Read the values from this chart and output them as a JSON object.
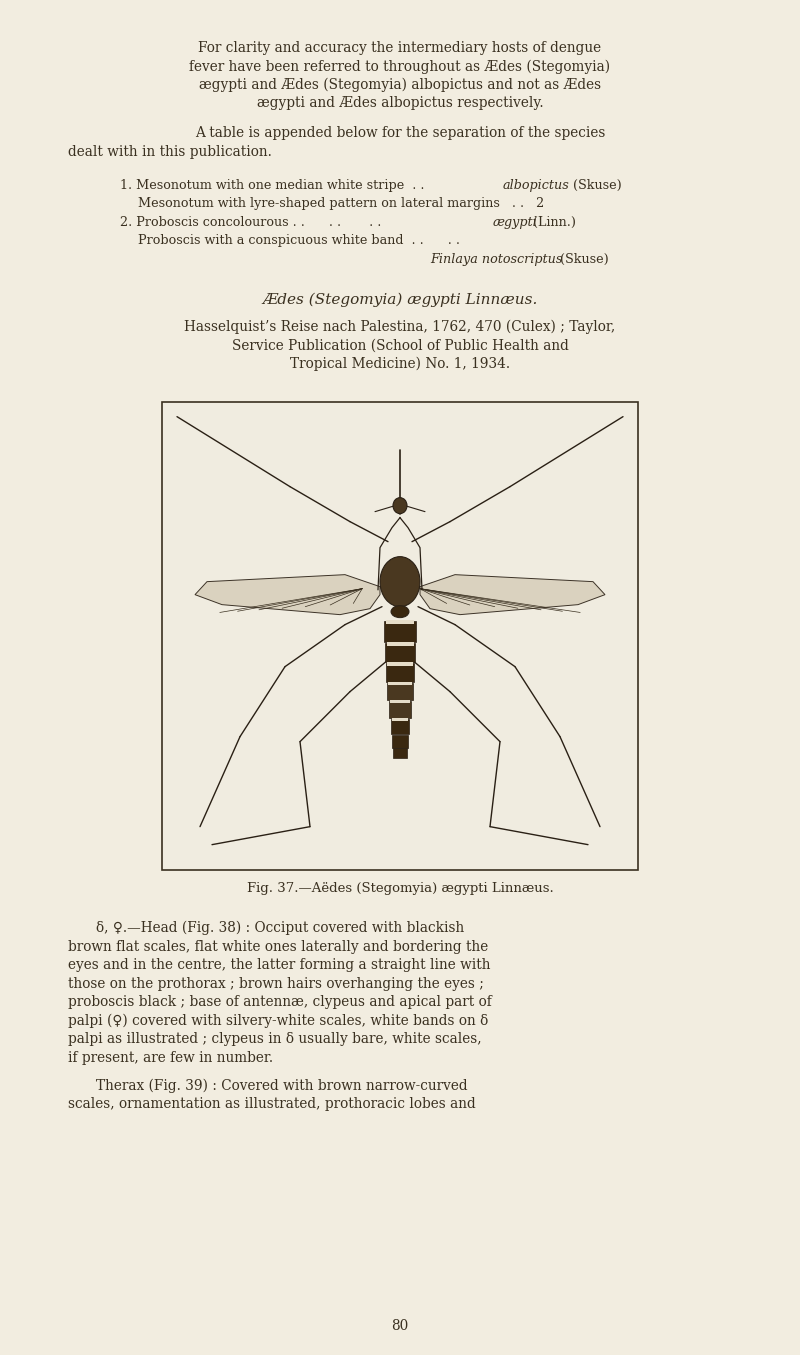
{
  "bg_color": "#f2ede0",
  "text_color": "#3a3020",
  "page_number": "80",
  "fig_caption": "Fig. 37.—Aëdes (Stegomyia) ægypti Linnæus.",
  "heading1_italic": "Ædes (Stegomyia) ægypti Linnæus.",
  "ref_line1": "Hasselquist’s Reise nach Palestina, 1762, 470 (Culex) ; Taylor,",
  "ref_line2": "Service Publication (School of Public Health and",
  "ref_line3": "Tropical Medicine) No. 1, 1934.",
  "lh": 18.5,
  "body_fs": 9.8,
  "small_fs": 9.2,
  "heading_fs": 11.0,
  "caption_fs": 9.5
}
